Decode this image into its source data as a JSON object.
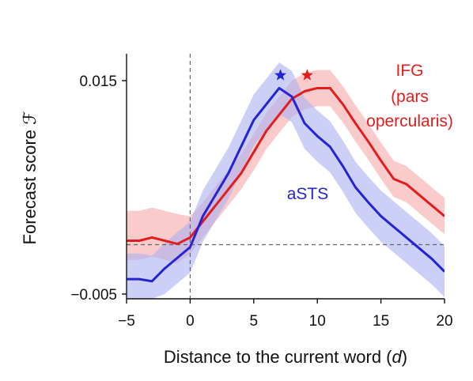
{
  "chart_data": {
    "type": "line",
    "xlabel_prefix": "Distance to the current word (",
    "xlabel_var": "d",
    "xlabel_suffix": ")",
    "ylabel_prefix": "Forecast score ",
    "ylabel_symbol": "ℱ",
    "xlim": [
      -5,
      20
    ],
    "ylim": [
      -0.005,
      0.017
    ],
    "x_ticks": [
      -5,
      0,
      5,
      10,
      15,
      20
    ],
    "x_tick_labels": [
      "−5",
      "0",
      "5",
      "10",
      "15",
      "20"
    ],
    "y_ticks": [
      -0.005,
      0.015
    ],
    "y_tick_labels": [
      "−0.005",
      "0.015"
    ],
    "reference_lines": {
      "vertical_x": 0,
      "horizontal_y": 0.0
    },
    "series": [
      {
        "name": "IFG (pars opercularis)",
        "label_lines": [
          "IFG",
          "(pars",
          "opercularis)"
        ],
        "color": "#e11d1d",
        "band_color": "#f7a8a8",
        "x": [
          -5,
          -4,
          -3,
          -2,
          -1,
          0,
          1,
          2,
          3,
          4,
          5,
          6,
          7,
          8,
          9,
          10,
          11,
          12,
          13,
          14,
          15,
          16,
          17,
          18,
          19,
          20
        ],
        "y": [
          0.0,
          0.0,
          0.0003,
          0.0,
          -0.0003,
          0.0003,
          0.0018,
          0.0033,
          0.0048,
          0.0063,
          0.0083,
          0.0103,
          0.0118,
          0.0133,
          0.014,
          0.0143,
          0.0143,
          0.0128,
          0.011,
          0.0093,
          0.0075,
          0.0058,
          0.0053,
          0.0043,
          0.0033,
          0.0023
        ],
        "lower": [
          -0.0018,
          -0.0018,
          -0.0015,
          -0.0018,
          -0.0021,
          -0.0012,
          0.0003,
          0.0018,
          0.0033,
          0.0048,
          0.0066,
          0.0086,
          0.0101,
          0.0116,
          0.0123,
          0.0126,
          0.0126,
          0.0111,
          0.0093,
          0.0076,
          0.0058,
          0.0041,
          0.0036,
          0.0026,
          0.0016,
          0.0006
        ],
        "upper": [
          0.0028,
          0.0028,
          0.0031,
          0.0028,
          0.0025,
          0.0023,
          0.0036,
          0.0051,
          0.0066,
          0.0081,
          0.01,
          0.012,
          0.0135,
          0.015,
          0.0157,
          0.016,
          0.016,
          0.0145,
          0.0127,
          0.011,
          0.0092,
          0.0075,
          0.007,
          0.006,
          0.005,
          0.004
        ],
        "peak_marker_x": 9.2,
        "peak_marker_y": 0.0158
      },
      {
        "name": "aSTS",
        "label_lines": [
          "aSTS"
        ],
        "color": "#2424d6",
        "band_color": "#aab0f2",
        "x": [
          -5,
          -4,
          -3,
          -2,
          -1,
          0,
          1,
          2,
          3,
          4,
          5,
          6,
          7,
          8,
          9,
          10,
          11,
          12,
          13,
          14,
          15,
          16,
          17,
          18,
          19,
          20
        ],
        "y": [
          -0.0036,
          -0.0036,
          -0.0038,
          -0.0026,
          -0.0016,
          -0.0006,
          0.0023,
          0.0043,
          0.0063,
          0.0088,
          0.0113,
          0.0128,
          0.0143,
          0.0135,
          0.011,
          0.0098,
          0.0088,
          0.007,
          0.005,
          0.0036,
          0.0023,
          0.0013,
          0.0003,
          -0.0007,
          -0.0017,
          -0.0029
        ],
        "lower": [
          -0.006,
          -0.006,
          -0.0062,
          -0.005,
          -0.004,
          -0.003,
          -0.0001,
          0.0019,
          0.0039,
          0.0064,
          0.0089,
          0.0104,
          0.0119,
          0.0111,
          0.0086,
          0.0074,
          0.0064,
          0.0046,
          0.0026,
          0.0012,
          -0.0001,
          -0.0011,
          -0.0021,
          -0.0031,
          -0.0041,
          -0.0053
        ],
        "upper": [
          -0.0012,
          -0.0012,
          -0.0014,
          -0.0002,
          0.0008,
          0.0018,
          0.0047,
          0.0067,
          0.0087,
          0.0112,
          0.0137,
          0.0152,
          0.0167,
          0.0159,
          0.0134,
          0.0122,
          0.0112,
          0.0094,
          0.0074,
          0.006,
          0.0047,
          0.0037,
          0.0027,
          0.0017,
          0.0007,
          -0.0005
        ],
        "peak_marker_x": 7.1,
        "peak_marker_y": 0.0158
      }
    ]
  }
}
